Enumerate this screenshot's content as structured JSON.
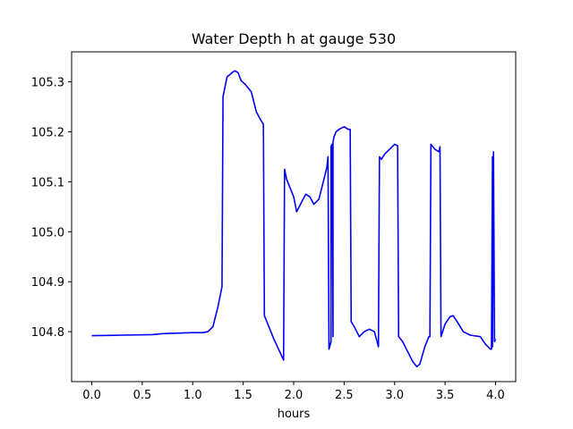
{
  "chart_data": {
    "type": "line",
    "title": "Water Depth h at gauge 530",
    "xlabel": "hours",
    "ylabel": "",
    "xlim": [
      -0.2,
      4.2
    ],
    "ylim": [
      104.7,
      105.36
    ],
    "xticks": [
      0.0,
      0.5,
      1.0,
      1.5,
      2.0,
      2.5,
      3.0,
      3.5,
      4.0
    ],
    "xtick_labels": [
      "0.0",
      "0.5",
      "1.0",
      "1.5",
      "2.0",
      "2.5",
      "3.0",
      "3.5",
      "4.0"
    ],
    "yticks": [
      104.8,
      104.9,
      105.0,
      105.1,
      105.2,
      105.3
    ],
    "ytick_labels": [
      "104.8",
      "104.9",
      "105.0",
      "105.1",
      "105.2",
      "105.3"
    ],
    "grid": false,
    "series": [
      {
        "color": "#0000ff",
        "x": [
          0.0,
          0.3,
          0.6,
          0.7,
          1.0,
          1.1,
          1.15,
          1.2,
          1.25,
          1.29,
          1.3,
          1.34,
          1.36,
          1.4,
          1.42,
          1.45,
          1.48,
          1.52,
          1.58,
          1.63,
          1.67,
          1.7,
          1.71,
          1.8,
          1.9,
          1.91,
          1.93,
          1.96,
          2.0,
          2.03,
          2.08,
          2.12,
          2.16,
          2.2,
          2.25,
          2.3,
          2.33,
          2.34,
          2.35,
          2.37,
          2.37,
          2.38,
          2.39,
          2.39,
          2.4,
          2.42,
          2.45,
          2.5,
          2.54,
          2.56,
          2.57,
          2.6,
          2.65,
          2.7,
          2.75,
          2.8,
          2.84,
          2.85,
          2.87,
          2.9,
          2.95,
          3.0,
          3.03,
          3.04,
          3.08,
          3.13,
          3.18,
          3.22,
          3.25,
          3.3,
          3.34,
          3.35,
          3.36,
          3.4,
          3.44,
          3.45,
          3.46,
          3.5,
          3.55,
          3.58,
          3.62,
          3.68,
          3.75,
          3.85,
          3.9,
          3.95,
          3.96,
          3.97,
          3.97,
          3.98,
          3.98,
          3.99,
          4.0
        ],
        "y": [
          104.792,
          104.793,
          104.794,
          104.796,
          104.798,
          104.798,
          104.8,
          104.81,
          104.85,
          104.89,
          105.27,
          105.31,
          105.313,
          105.32,
          105.322,
          105.318,
          105.302,
          105.295,
          105.28,
          105.24,
          105.225,
          105.215,
          104.832,
          104.787,
          104.743,
          105.125,
          105.105,
          105.09,
          105.07,
          105.04,
          105.06,
          105.075,
          105.07,
          105.055,
          105.065,
          105.105,
          105.13,
          105.15,
          104.765,
          104.78,
          105.17,
          105.175,
          104.79,
          105.18,
          105.19,
          105.2,
          105.205,
          105.21,
          105.205,
          105.205,
          104.82,
          104.81,
          104.79,
          104.8,
          104.805,
          104.8,
          104.77,
          105.15,
          105.145,
          105.155,
          105.165,
          105.175,
          105.172,
          104.79,
          104.78,
          104.76,
          104.74,
          104.73,
          104.735,
          104.77,
          104.79,
          104.79,
          105.175,
          105.165,
          105.16,
          105.17,
          104.79,
          104.815,
          104.83,
          104.832,
          104.82,
          104.8,
          104.793,
          104.79,
          104.775,
          104.765,
          104.765,
          105.15,
          104.77,
          105.155,
          105.16,
          104.78,
          104.785
        ]
      }
    ]
  }
}
